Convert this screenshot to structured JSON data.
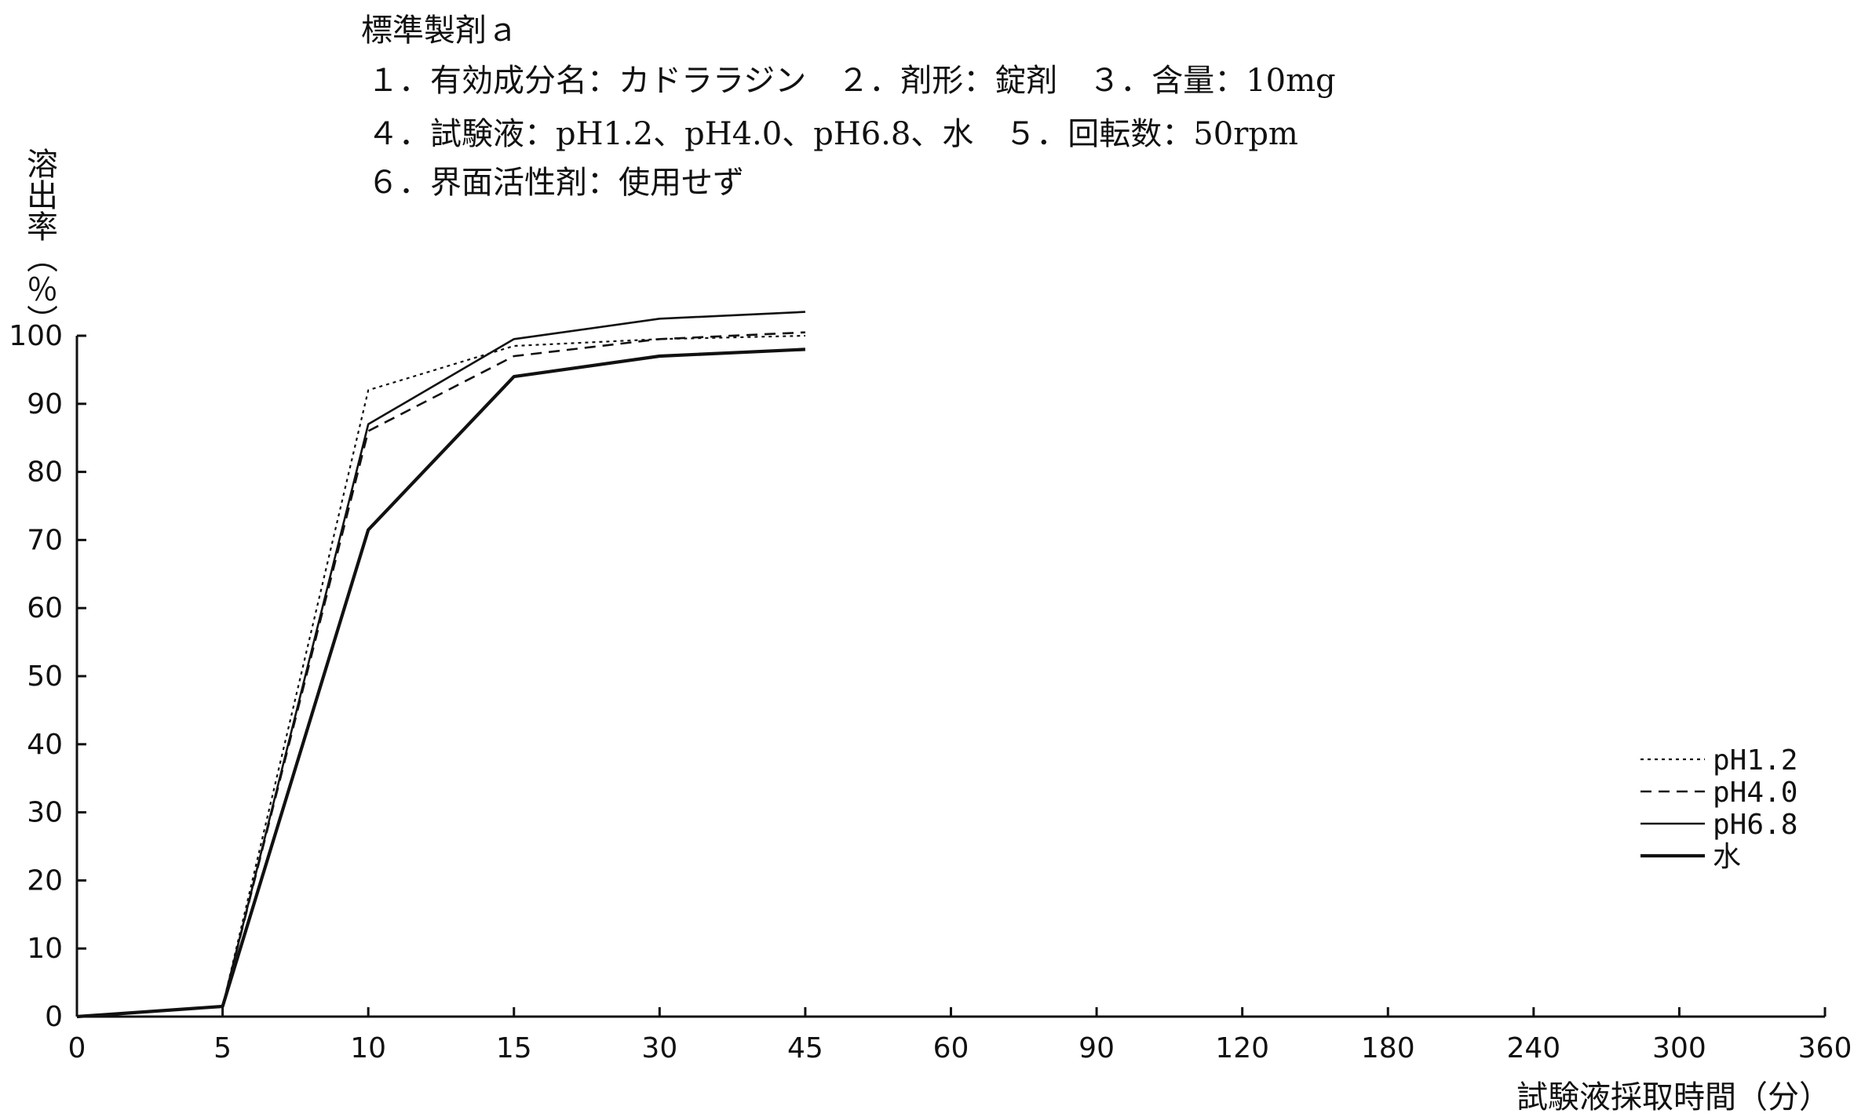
{
  "header": {
    "title": "標準製剤ａ",
    "conditions": [
      "１．有効成分名：カドララジン　２．剤形：錠剤　３．含量：10mg",
      "４．試験液：pH1.2、pH4.0、pH6.8、水　５．回転数：50rpm",
      "６．界面活性剤：使用せず"
    ]
  },
  "chart_data": {
    "type": "line",
    "xlabel": "試験液採取時間（分）",
    "ylabel": "溶出率（％）",
    "x_scale": "categorical",
    "categories": [
      "0",
      "5",
      "10",
      "15",
      "30",
      "45",
      "60",
      "90",
      "120",
      "180",
      "240",
      "300",
      "360"
    ],
    "ylim": [
      0,
      100
    ],
    "yticks": [
      0,
      10,
      20,
      30,
      40,
      50,
      60,
      70,
      80,
      90,
      100
    ],
    "legend_position": "right",
    "series": [
      {
        "name": "pH1.2",
        "style": "dotted",
        "x": [
          "0",
          "5",
          "10",
          "15",
          "30",
          "45"
        ],
        "values": [
          0,
          1.5,
          92,
          98.5,
          99.5,
          100
        ]
      },
      {
        "name": "pH4.0",
        "style": "dashed",
        "x": [
          "0",
          "5",
          "10",
          "15",
          "30",
          "45"
        ],
        "values": [
          0,
          1.5,
          86,
          97,
          99.5,
          100.5
        ]
      },
      {
        "name": "pH6.8",
        "style": "solid",
        "x": [
          "0",
          "5",
          "10",
          "15",
          "30",
          "45"
        ],
        "values": [
          0,
          1.5,
          87,
          99.5,
          102.5,
          103.5
        ]
      },
      {
        "name": "水",
        "style": "thick",
        "x": [
          "0",
          "5",
          "10",
          "15",
          "30",
          "45"
        ],
        "values": [
          0,
          1.5,
          71.5,
          94,
          97,
          98
        ]
      }
    ]
  }
}
